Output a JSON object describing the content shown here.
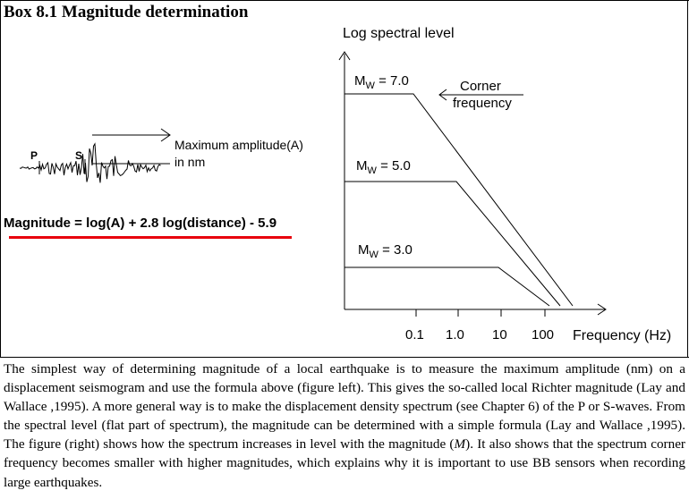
{
  "box": {
    "title": "Box 8.1  Magnitude determination"
  },
  "seismogram": {
    "p_label": "P",
    "s_label": "S",
    "amplitude_label_line1": "Maximum amplitude(A)",
    "amplitude_label_line2": "in nm"
  },
  "formula": "Magnitude = log(A) + 2.8 log(distance) - 5.9",
  "spectrum": {
    "ylabel": "Log spectral level",
    "xlabel": "Frequency (Hz)",
    "xticks": [
      "0.1",
      "1.0",
      "10",
      "100"
    ],
    "corner_label_line1": "Corner",
    "corner_label_line2": "frequency",
    "mw_symbol": "M",
    "mw_sub": "W",
    "curves": [
      {
        "mw": "= 7.0"
      },
      {
        "mw": "= 5.0"
      },
      {
        "mw": "= 3.0"
      }
    ]
  },
  "paragraph": {
    "part1": "The simplest way of determining magnitude of a local earthquake is to measure the maximum amplitude (nm) on a displacement seismogram and use the formula above (figure left). This gives the so-called local Richter magnitude (Lay and Wallace ,1995). A more general way is to make the displacement density spectrum (see Chapter 6) of the P or S-waves. From the spectral level (flat part of spectrum), the magnitude can be determined with a simple formula (Lay and Wallace ,1995). The figure (right) shows how the spectrum increases in level with the magnitude (",
    "italic": "M",
    "part2": "). It also shows that the spectrum corner frequency becomes smaller with higher magnitudes, which explains why it is important to use BB sensors when recording large earthquakes."
  }
}
